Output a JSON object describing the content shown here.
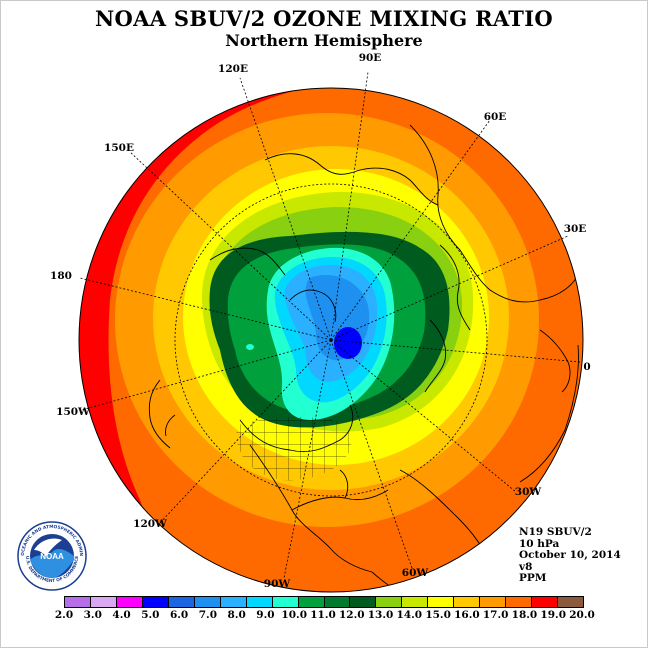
{
  "title": "NOAA SBUV/2 OZONE MIXING RATIO",
  "subtitle": "Northern Hemisphere",
  "longitude_labels": [
    "90E",
    "60E",
    "30E",
    "0",
    "30W",
    "60W",
    "90W",
    "120W",
    "150W",
    "180",
    "150E",
    "120E"
  ],
  "info_lines": [
    "N19 SBUV/2",
    "10 hPa",
    "October 10, 2014",
    "v8",
    "PPM"
  ],
  "legend": {
    "ticks": [
      "2.0",
      "3.0",
      "4.0",
      "5.0",
      "6.0",
      "7.0",
      "8.0",
      "9.0",
      "10.0",
      "11.0",
      "12.0",
      "13.0",
      "14.0",
      "15.0",
      "16.0",
      "17.0",
      "18.0",
      "19.0",
      "20.0"
    ],
    "colors": [
      "#b56ee8",
      "#d9a8f0",
      "#ff00ff",
      "#0000ff",
      "#1a66e0",
      "#1e90f0",
      "#2ab0ff",
      "#00d8ff",
      "#22ffd0",
      "#00a03c",
      "#007a2c",
      "#005c1e",
      "#88d010",
      "#c8e800",
      "#ffff00",
      "#ffc800",
      "#ff9a00",
      "#ff6a00",
      "#ff0000",
      "#8b5a3c"
    ]
  },
  "logo_text": {
    "name": "NOAA",
    "ring_top": "NATIONAL OCEANIC AND ATMOSPHERIC ADMINISTRATION",
    "ring_bottom": "U.S. DEPARTMENT OF COMMERCE"
  }
}
